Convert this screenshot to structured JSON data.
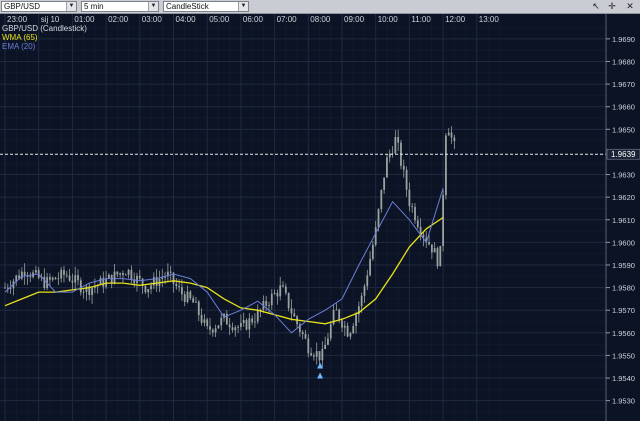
{
  "toolbar": {
    "symbol": "GBP/USD",
    "interval": "5 min",
    "chart_type": "CandleStick",
    "icons": [
      "cursor-icon",
      "crosshair-icon",
      "close-icon"
    ]
  },
  "legend": {
    "main": "GBP/USD (Candlestick)",
    "wma": "WMA (65)",
    "ema": "EMA (20)"
  },
  "colors": {
    "background": "#0b1324",
    "grid": "#1f2a40",
    "candle": "#9aa3a0",
    "wma": "#e8e21a",
    "ema": "#6b7fd9",
    "price_line": "#e6e6e6",
    "axis_text": "#cfd3da"
  },
  "chart_data": {
    "type": "candlestick",
    "x_ticks": [
      "23:00",
      "sij 10",
      "01:00",
      "02:00",
      "03:00",
      "04:00",
      "05:00",
      "06:00",
      "07:00",
      "08:00",
      "09:00",
      "10:00",
      "11:00",
      "12:00",
      "13:00"
    ],
    "y_ticks": [
      "1.9530",
      "1.9540",
      "1.9550",
      "1.9560",
      "1.9570",
      "1.9580",
      "1.9590",
      "1.9600",
      "1.9610",
      "1.9620",
      "1.9630",
      "1.9650",
      "1.9660",
      "1.9670",
      "1.9680",
      "1.9690"
    ],
    "ylim": [
      1.9521,
      1.9701
    ],
    "current_price": "1.9639",
    "current_value": 1.9639,
    "candles_per_hour": 12,
    "series": [
      {
        "name": "WMA (65)",
        "values": [
          1.9572,
          1.9575,
          1.9578,
          1.9578,
          1.9579,
          1.958,
          1.9582,
          1.9582,
          1.9581,
          1.9582,
          1.9583,
          1.9582,
          1.958,
          1.9575,
          1.9571,
          1.957,
          1.9568,
          1.9566,
          1.9565,
          1.9564,
          1.9566,
          1.9569,
          1.9575,
          1.9586,
          1.9598,
          1.9606,
          1.9611
        ]
      },
      {
        "name": "EMA (20)",
        "values": [
          1.9578,
          1.9585,
          1.9586,
          1.9578,
          1.9578,
          1.9582,
          1.9584,
          1.9584,
          1.9583,
          1.9584,
          1.9586,
          1.9584,
          1.9578,
          1.9567,
          1.957,
          1.9574,
          1.9568,
          1.956,
          1.9566,
          1.957,
          1.9575,
          1.959,
          1.9604,
          1.9618,
          1.961,
          1.96,
          1.9624
        ]
      }
    ],
    "ma_x_hours": [
      0,
      0.5,
      1.0,
      1.5,
      2.0,
      2.5,
      3.0,
      3.5,
      4.0,
      4.5,
      5.0,
      5.5,
      6.0,
      6.5,
      7.0,
      7.5,
      8.0,
      8.5,
      9.0,
      9.5,
      10.0,
      10.5,
      11.0,
      11.5,
      12.0,
      12.5,
      13.0
    ],
    "close_path_hours": [
      0,
      0.6,
      1.2,
      1.8,
      2.4,
      3.0,
      3.6,
      4.2,
      4.8,
      5.2,
      5.6,
      6.0,
      6.5,
      7.0,
      7.5,
      7.8,
      8.2,
      8.6,
      9.0,
      9.4,
      9.8,
      10.2,
      10.6,
      11.0,
      11.3,
      11.6,
      12.0,
      12.4,
      12.7,
      12.9,
      13.1,
      13.25,
      13.4
    ],
    "close_path": [
      1.958,
      1.9588,
      1.9582,
      1.9586,
      1.9579,
      1.9583,
      1.9588,
      1.958,
      1.9586,
      1.9578,
      1.9573,
      1.9561,
      1.9566,
      1.9562,
      1.9568,
      1.9574,
      1.958,
      1.9566,
      1.9554,
      1.9549,
      1.957,
      1.956,
      1.9576,
      1.9605,
      1.9635,
      1.9646,
      1.9618,
      1.9604,
      1.9597,
      1.959,
      1.9655,
      1.9646,
      1.9639
    ]
  }
}
